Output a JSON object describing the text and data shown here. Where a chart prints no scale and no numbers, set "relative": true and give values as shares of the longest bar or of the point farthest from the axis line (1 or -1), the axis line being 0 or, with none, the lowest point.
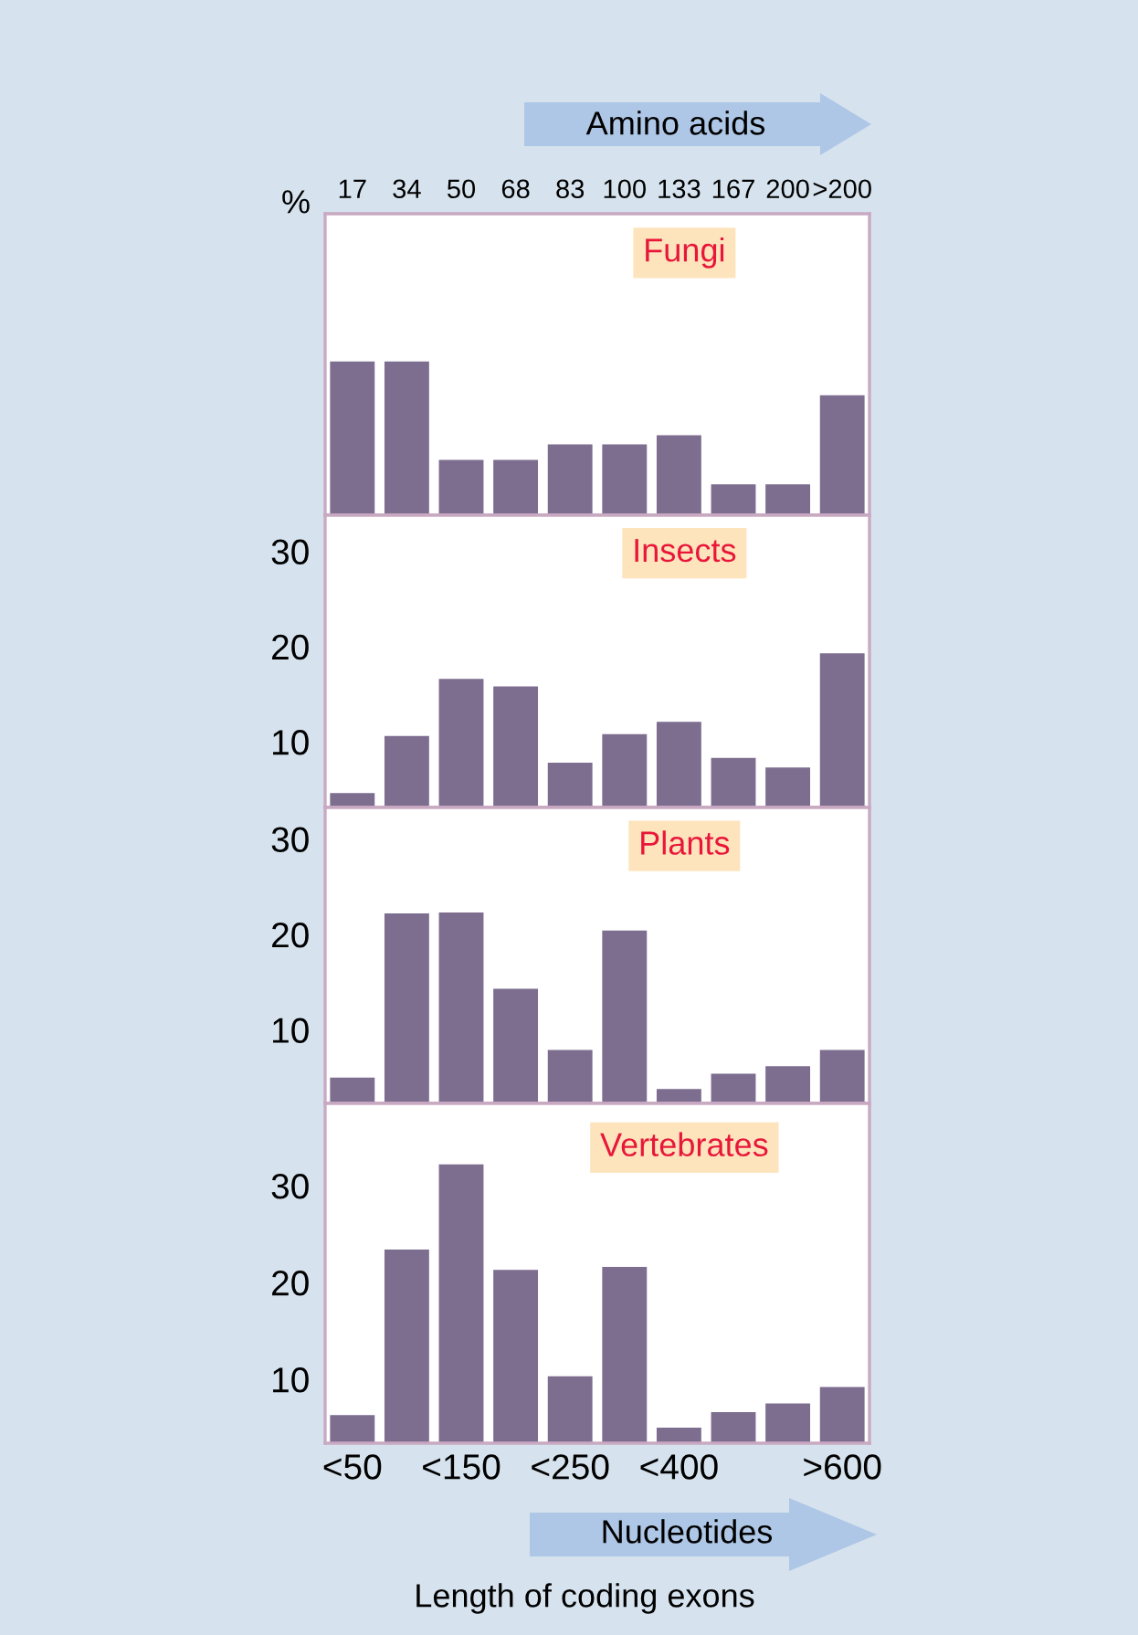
{
  "chart_data": [
    {
      "type": "bar",
      "title": "Fungi",
      "ylabel": "%",
      "x2label": "Amino acids",
      "relative": true,
      "tick_labels": "x",
      "color": "#7d6d8f",
      "categories": [
        "17",
        "34",
        "50",
        "68",
        "83",
        "100",
        "133",
        "167",
        "200",
        ">200"
      ],
      "values": [
        1,
        1,
        0.36,
        0.36,
        0.46,
        0.46,
        0.52,
        0.2,
        0.2,
        0.78
      ]
    },
    {
      "type": "bar",
      "title": "Insects",
      "tick_labels": "y",
      "color": "#7d6d8f",
      "ylim": [
        3.1,
        33.8
      ],
      "yticks": [
        10,
        20,
        30
      ],
      "categories": [
        null,
        null,
        null,
        null,
        null,
        null,
        null,
        null,
        null,
        null
      ],
      "values": [
        4.6,
        10.6,
        16.6,
        15.8,
        7.8,
        10.8,
        12.1,
        8.3,
        7.3,
        19.3
      ]
    },
    {
      "type": "bar",
      "title": "Plants",
      "tick_labels": "y",
      "color": "#7d6d8f",
      "ylim": [
        2.3,
        33.3
      ],
      "yticks": [
        10,
        20,
        30
      ],
      "categories": [
        null,
        null,
        null,
        null,
        null,
        null,
        null,
        null,
        null,
        null
      ],
      "values": [
        5.0,
        22.2,
        22.3,
        14.3,
        7.9,
        20.4,
        3.8,
        5.4,
        6.2,
        7.9
      ]
    },
    {
      "type": "bar",
      "title": "Vertebrates",
      "xlabel": "Nucleotides",
      "color": "#7d6d8f",
      "ylim": [
        3.4,
        38.5
      ],
      "yticks": [
        10,
        20,
        30
      ],
      "categories": [
        "<50",
        null,
        "<150",
        null,
        "<250",
        null,
        "<400",
        null,
        null,
        ">600"
      ],
      "values": [
        6.3,
        23.4,
        32.2,
        21.3,
        10.3,
        21.6,
        5.0,
        6.6,
        7.5,
        9.2
      ],
      "annotations": [
        "Length of coding exons"
      ]
    }
  ]
}
